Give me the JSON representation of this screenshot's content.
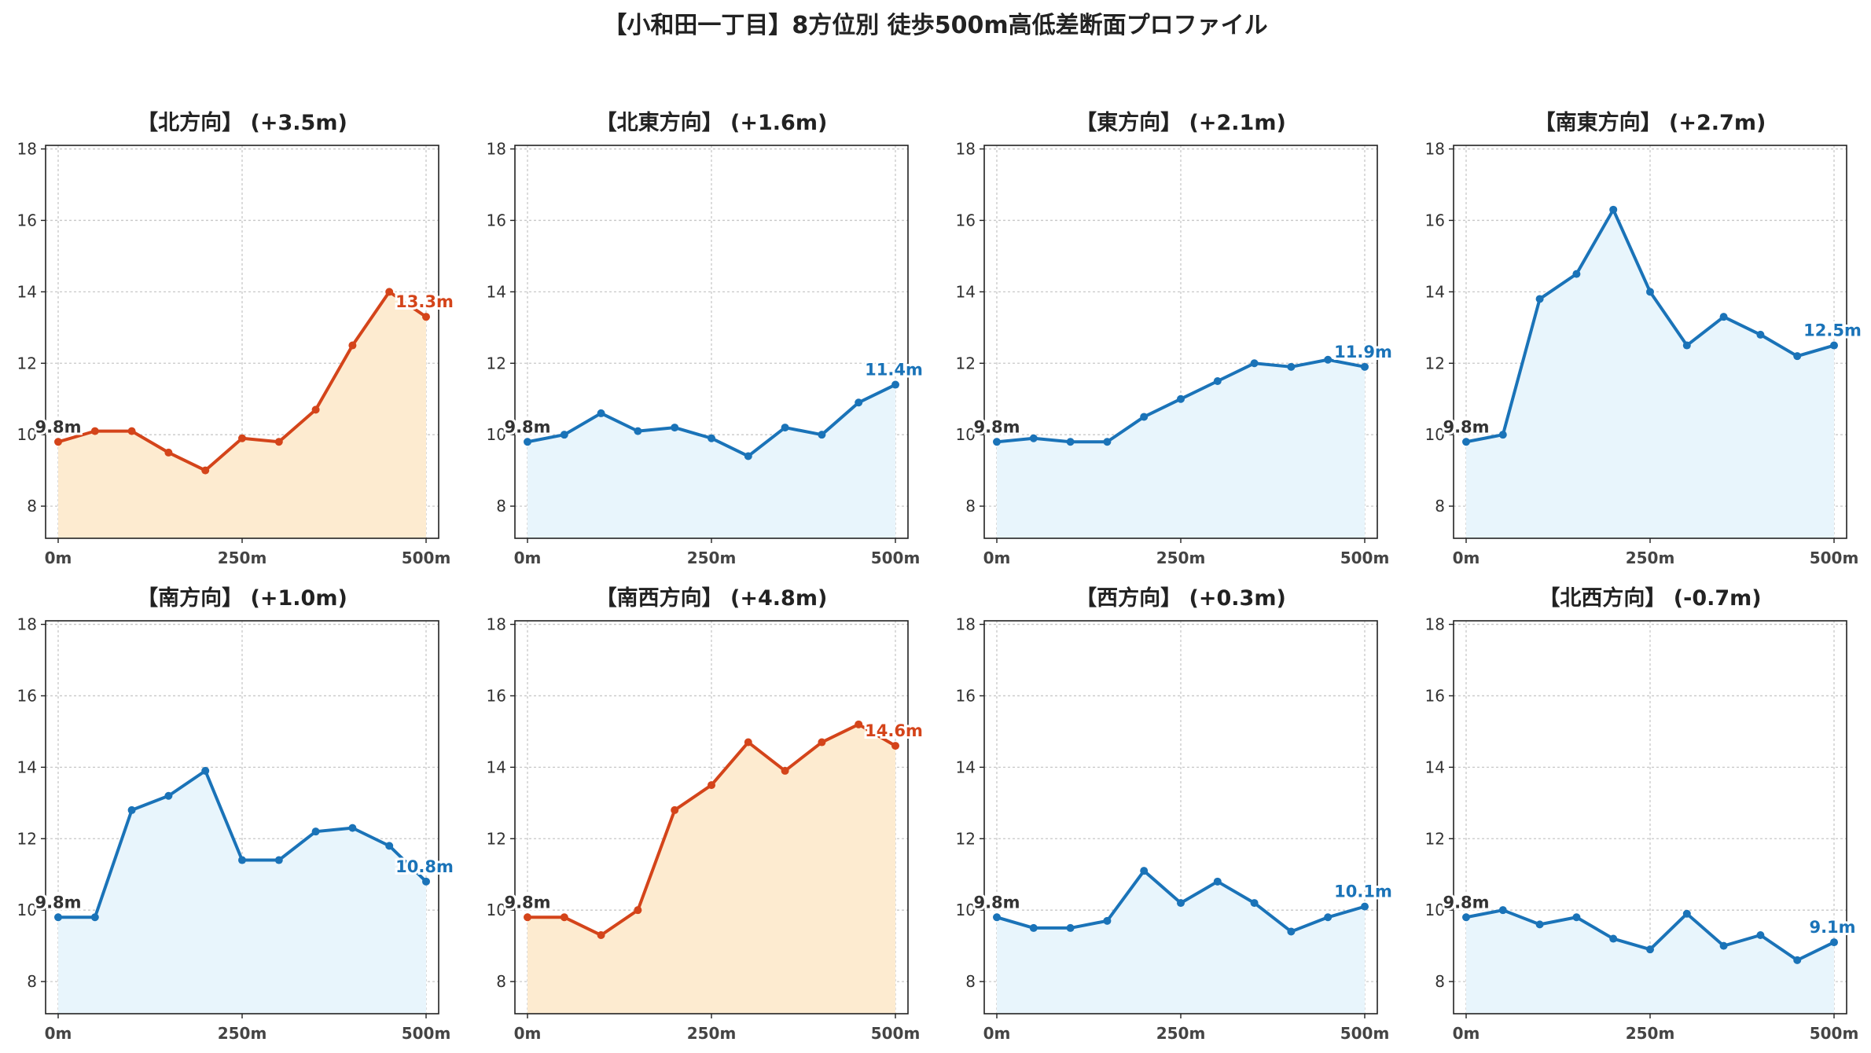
{
  "title": "【小和田一丁目】8方位別 徒歩500m高低差断面プロファイル",
  "colors": {
    "up_line": "#d4441a",
    "up_fill": "#fdebd0",
    "flat_line": "#1a73b8",
    "flat_fill": "#e8f5fc"
  },
  "chart_data": [
    {
      "type": "area",
      "title": "【北方向】 (+3.5m)",
      "x": [
        0,
        50,
        100,
        150,
        200,
        250,
        300,
        350,
        400,
        450,
        500
      ],
      "values": [
        9.8,
        10.1,
        10.1,
        9.5,
        9.0,
        9.9,
        9.8,
        10.7,
        12.5,
        14.0,
        13.3
      ],
      "start_label": "9.8m",
      "end_label": "13.3m",
      "trend": "up",
      "ylim": [
        7.1,
        18.1
      ],
      "yticks": [
        8,
        10,
        12,
        14,
        16,
        18
      ],
      "xticks": [
        "0m",
        "250m",
        "500m"
      ],
      "grid": true
    },
    {
      "type": "area",
      "title": "【北東方向】 (+1.6m)",
      "x": [
        0,
        50,
        100,
        150,
        200,
        250,
        300,
        350,
        400,
        450,
        500
      ],
      "values": [
        9.8,
        10.0,
        10.6,
        10.1,
        10.2,
        9.9,
        9.4,
        10.2,
        10.0,
        10.9,
        11.4
      ],
      "start_label": "9.8m",
      "end_label": "11.4m",
      "trend": "flat",
      "ylim": [
        7.1,
        18.1
      ],
      "yticks": [
        8,
        10,
        12,
        14,
        16,
        18
      ],
      "xticks": [
        "0m",
        "250m",
        "500m"
      ],
      "grid": true
    },
    {
      "type": "area",
      "title": "【東方向】 (+2.1m)",
      "x": [
        0,
        50,
        100,
        150,
        200,
        250,
        300,
        350,
        400,
        450,
        500
      ],
      "values": [
        9.8,
        9.9,
        9.8,
        9.8,
        10.5,
        11.0,
        11.5,
        12.0,
        11.9,
        12.1,
        11.9
      ],
      "start_label": "9.8m",
      "end_label": "11.9m",
      "trend": "flat",
      "ylim": [
        7.1,
        18.1
      ],
      "yticks": [
        8,
        10,
        12,
        14,
        16,
        18
      ],
      "xticks": [
        "0m",
        "250m",
        "500m"
      ],
      "grid": true
    },
    {
      "type": "area",
      "title": "【南東方向】 (+2.7m)",
      "x": [
        0,
        50,
        100,
        150,
        200,
        250,
        300,
        350,
        400,
        450,
        500
      ],
      "values": [
        9.8,
        10.0,
        13.8,
        14.5,
        16.3,
        14.0,
        12.5,
        13.3,
        12.8,
        12.2,
        12.5
      ],
      "start_label": "9.8m",
      "end_label": "12.5m",
      "trend": "flat",
      "ylim": [
        7.1,
        18.1
      ],
      "yticks": [
        8,
        10,
        12,
        14,
        16,
        18
      ],
      "xticks": [
        "0m",
        "250m",
        "500m"
      ],
      "grid": true
    },
    {
      "type": "area",
      "title": "【南方向】 (+1.0m)",
      "x": [
        0,
        50,
        100,
        150,
        200,
        250,
        300,
        350,
        400,
        450,
        500
      ],
      "values": [
        9.8,
        9.8,
        12.8,
        13.2,
        13.9,
        11.4,
        11.4,
        12.2,
        12.3,
        11.8,
        10.8
      ],
      "start_label": "9.8m",
      "end_label": "10.8m",
      "trend": "flat",
      "ylim": [
        7.1,
        18.1
      ],
      "yticks": [
        8,
        10,
        12,
        14,
        16,
        18
      ],
      "xticks": [
        "0m",
        "250m",
        "500m"
      ],
      "grid": true
    },
    {
      "type": "area",
      "title": "【南西方向】 (+4.8m)",
      "x": [
        0,
        50,
        100,
        150,
        200,
        250,
        300,
        350,
        400,
        450,
        500
      ],
      "values": [
        9.8,
        9.8,
        9.3,
        10.0,
        12.8,
        13.5,
        14.7,
        13.9,
        14.7,
        15.2,
        14.6
      ],
      "start_label": "9.8m",
      "end_label": "14.6m",
      "trend": "up",
      "ylim": [
        7.1,
        18.1
      ],
      "yticks": [
        8,
        10,
        12,
        14,
        16,
        18
      ],
      "xticks": [
        "0m",
        "250m",
        "500m"
      ],
      "grid": true
    },
    {
      "type": "area",
      "title": "【西方向】 (+0.3m)",
      "x": [
        0,
        50,
        100,
        150,
        200,
        250,
        300,
        350,
        400,
        450,
        500
      ],
      "values": [
        9.8,
        9.5,
        9.5,
        9.7,
        11.1,
        10.2,
        10.8,
        10.2,
        9.4,
        9.8,
        10.1
      ],
      "start_label": "9.8m",
      "end_label": "10.1m",
      "trend": "flat",
      "ylim": [
        7.1,
        18.1
      ],
      "yticks": [
        8,
        10,
        12,
        14,
        16,
        18
      ],
      "xticks": [
        "0m",
        "250m",
        "500m"
      ],
      "grid": true
    },
    {
      "type": "area",
      "title": "【北西方向】 (-0.7m)",
      "x": [
        0,
        50,
        100,
        150,
        200,
        250,
        300,
        350,
        400,
        450,
        500
      ],
      "values": [
        9.8,
        10.0,
        9.6,
        9.8,
        9.2,
        8.9,
        9.9,
        9.0,
        9.3,
        8.6,
        9.1
      ],
      "start_label": "9.8m",
      "end_label": "9.1m",
      "trend": "flat",
      "ylim": [
        7.1,
        18.1
      ],
      "yticks": [
        8,
        10,
        12,
        14,
        16,
        18
      ],
      "xticks": [
        "0m",
        "250m",
        "500m"
      ],
      "grid": true
    }
  ]
}
